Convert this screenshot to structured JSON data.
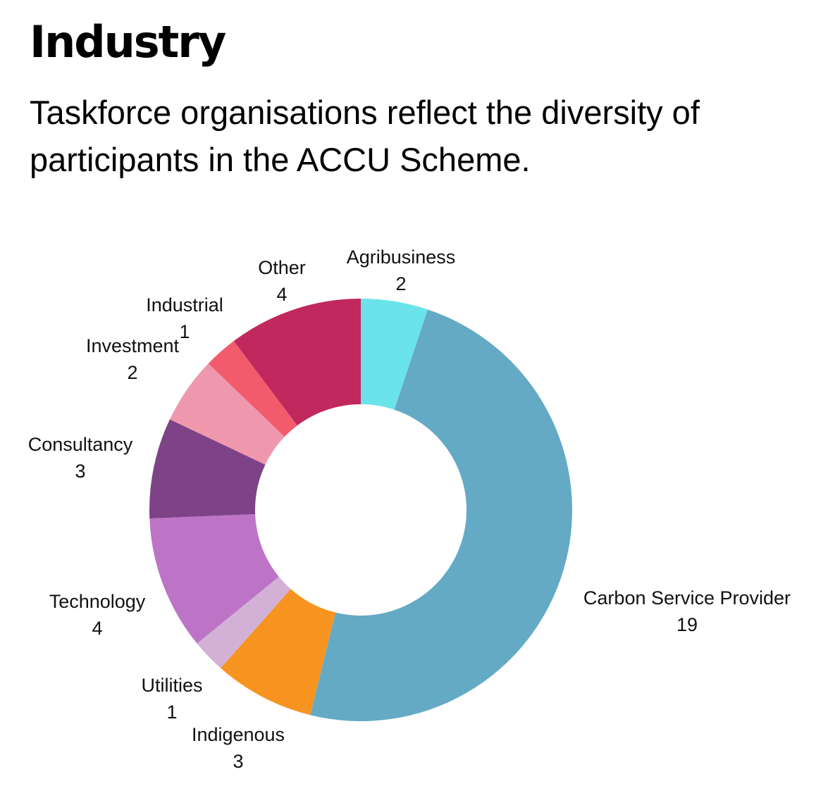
{
  "header": {
    "title": "Industry",
    "subtitle": "Taskforce organisations reflect the diversity of participants in the ACCU Scheme."
  },
  "chart_data": {
    "type": "pie",
    "variant": "donut",
    "start_angle_deg": 0,
    "direction": "clockwise",
    "legend": "none (labels placed beside slices)",
    "slices": [
      {
        "label": "Agribusiness",
        "value": 2,
        "color": "#6ae4ea"
      },
      {
        "label": "Carbon Service Provider",
        "value": 19,
        "color": "#64aac4"
      },
      {
        "label": "Indigenous",
        "value": 3,
        "color": "#f79420"
      },
      {
        "label": "Utilities",
        "value": 1,
        "color": "#d3b1d7"
      },
      {
        "label": "Technology",
        "value": 4,
        "color": "#bd74c6"
      },
      {
        "label": "Consultancy",
        "value": 3,
        "color": "#7e4387"
      },
      {
        "label": "Investment",
        "value": 2,
        "color": "#ef97ad"
      },
      {
        "label": "Industrial",
        "value": 1,
        "color": "#f15b6c"
      },
      {
        "label": "Other",
        "value": 4,
        "color": "#c0285e"
      }
    ]
  }
}
